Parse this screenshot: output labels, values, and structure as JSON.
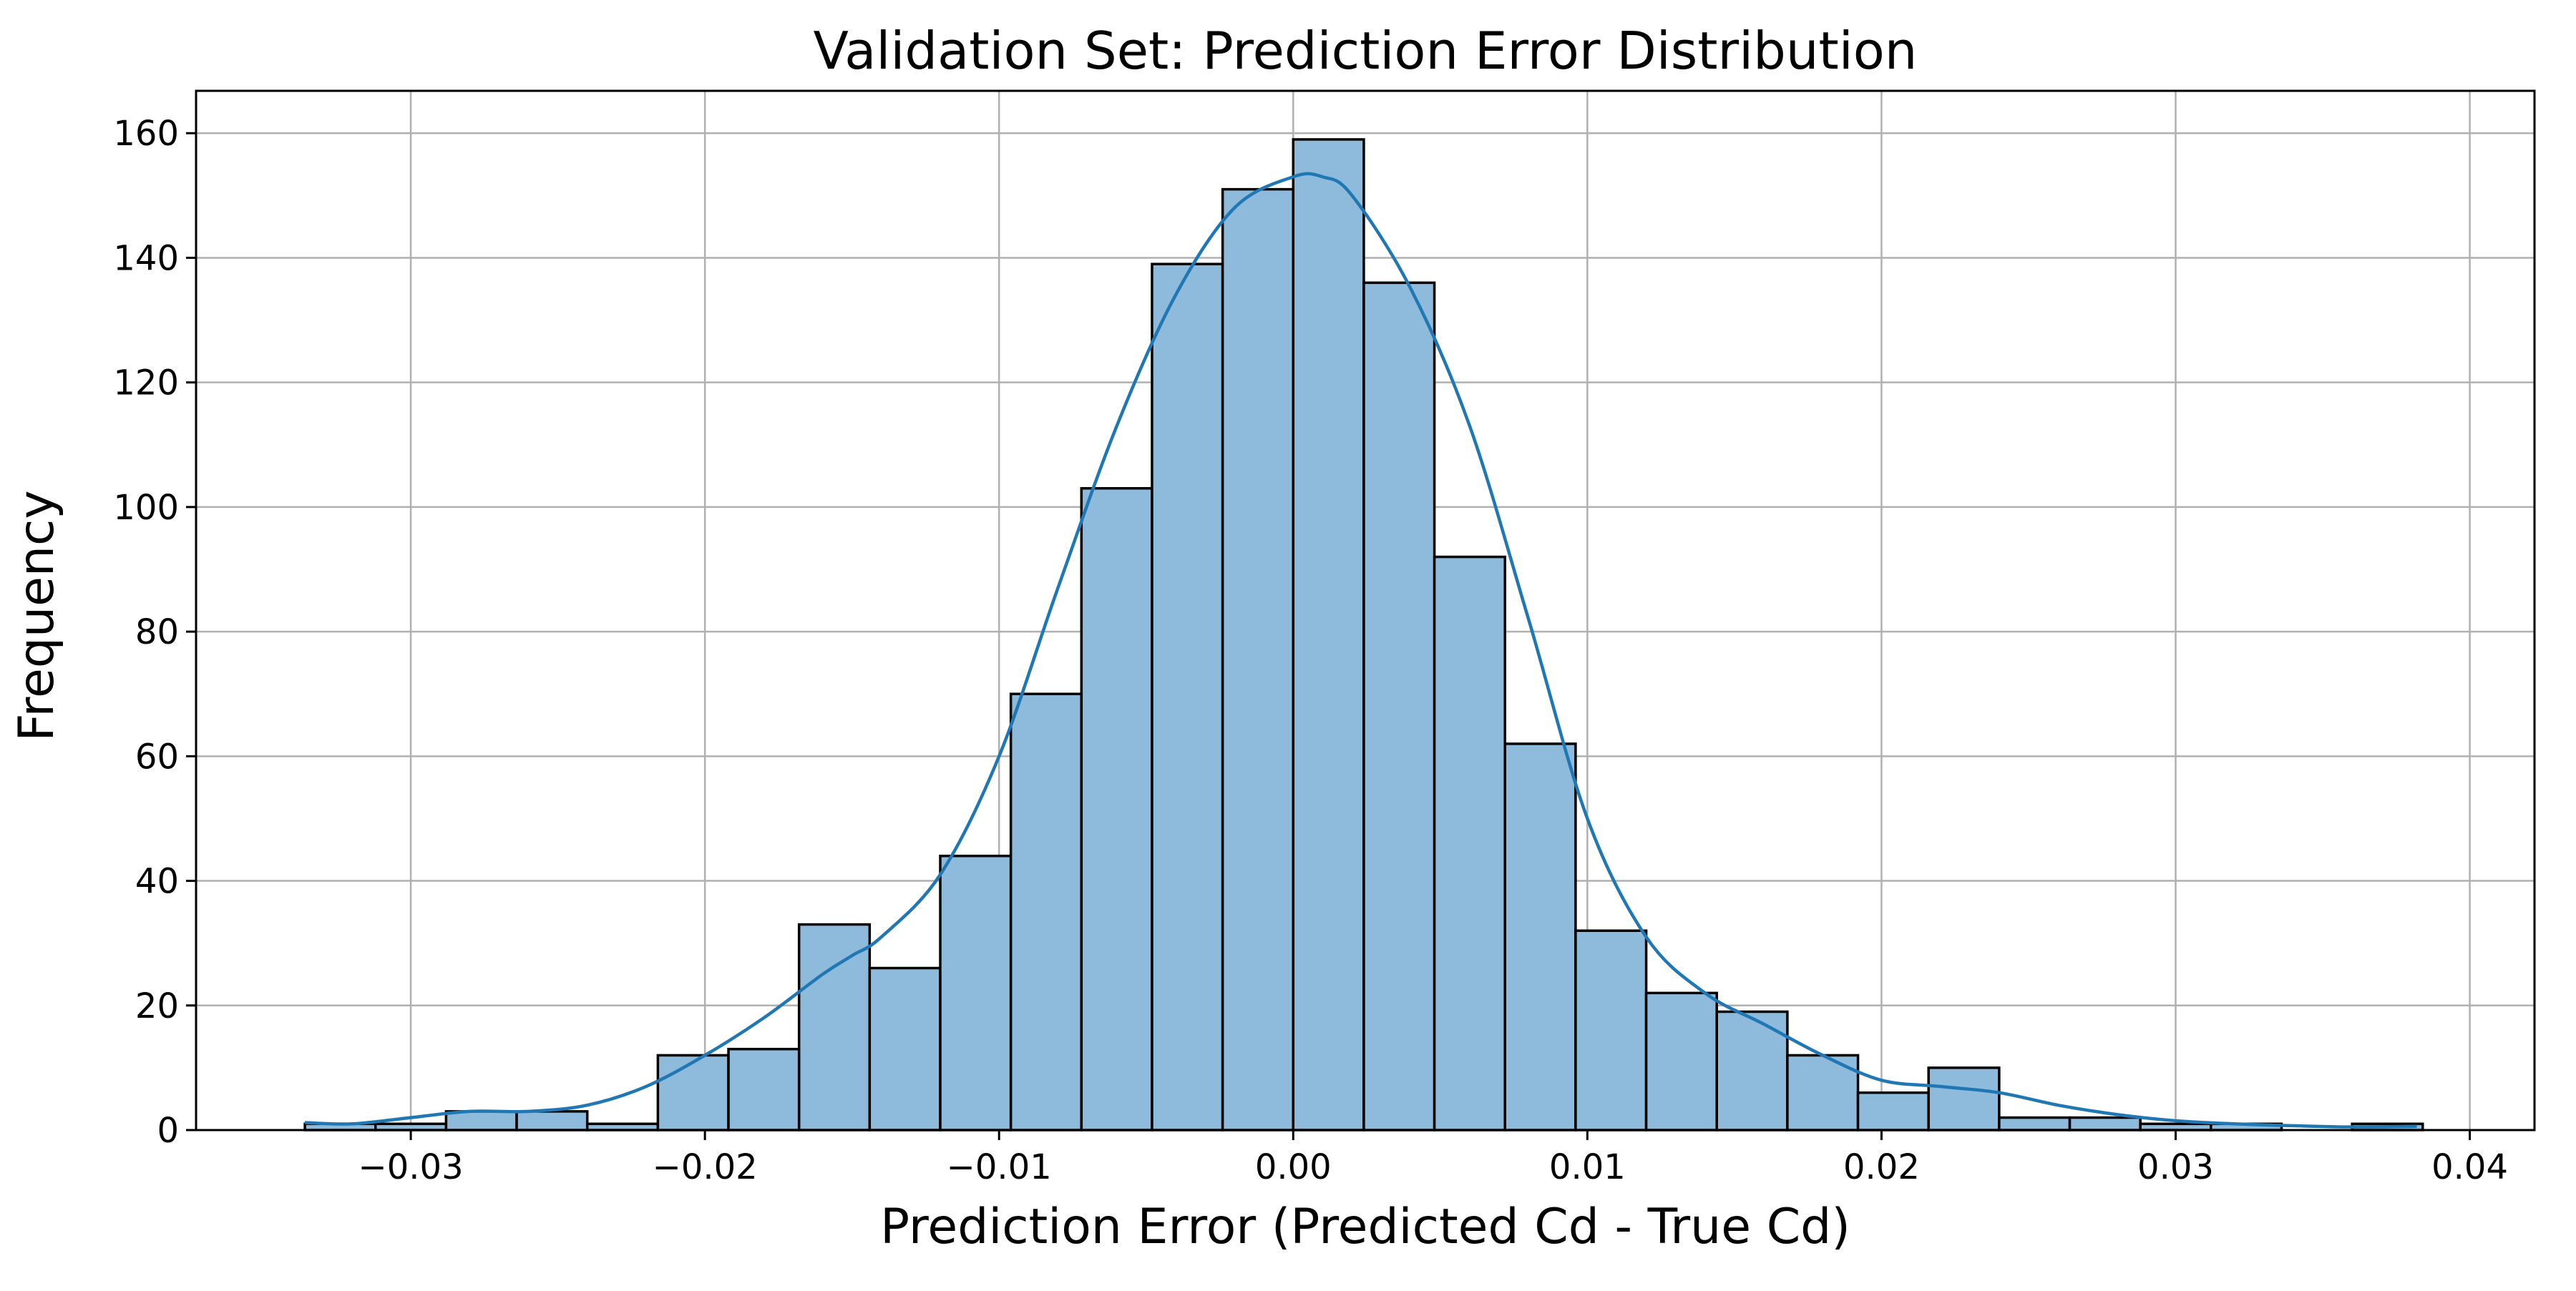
{
  "chart_data": {
    "type": "bar",
    "title": "Validation Set: Prediction Error Distribution",
    "xlabel": "Prediction Error (Predicted Cd - True Cd)",
    "ylabel": "Frequency",
    "xlim": [
      -0.0373,
      0.0422
    ],
    "ylim": [
      0,
      166.8
    ],
    "grid": true,
    "x_ticks": [
      -0.03,
      -0.02,
      -0.01,
      0.0,
      0.01,
      0.02,
      0.03,
      0.04
    ],
    "x_tick_labels": [
      "−0.03",
      "−0.02",
      "−0.01",
      "0.00",
      "0.01",
      "0.02",
      "0.03",
      "0.04"
    ],
    "y_ticks": [
      0,
      20,
      40,
      60,
      80,
      100,
      120,
      140,
      160
    ],
    "y_tick_labels": [
      "0",
      "20",
      "40",
      "60",
      "80",
      "100",
      "120",
      "140",
      "160"
    ],
    "bin_start": -0.0336,
    "bin_width": 0.0024,
    "values": [
      1,
      1,
      3,
      3,
      1,
      12,
      13,
      33,
      26,
      44,
      70,
      103,
      139,
      151,
      159,
      136,
      92,
      62,
      32,
      22,
      19,
      12,
      6,
      10,
      2,
      2,
      1,
      1,
      0,
      1
    ],
    "kde": {
      "x": [
        -0.0336,
        -0.032,
        -0.03,
        -0.028,
        -0.026,
        -0.024,
        -0.022,
        -0.02,
        -0.018,
        -0.016,
        -0.015,
        -0.014,
        -0.012,
        -0.01,
        -0.008,
        -0.006,
        -0.004,
        -0.002,
        0.0,
        0.001,
        0.002,
        0.004,
        0.006,
        0.008,
        0.01,
        0.012,
        0.014,
        0.016,
        0.018,
        0.02,
        0.022,
        0.024,
        0.026,
        0.028,
        0.03,
        0.032,
        0.034,
        0.036,
        0.0382
      ],
      "y": [
        1.2,
        1.0,
        2.0,
        3.0,
        3.0,
        4.0,
        7.0,
        12.0,
        18.0,
        25.0,
        28.0,
        31.0,
        41.0,
        60.0,
        87.0,
        113.0,
        134.0,
        148.0,
        153.0,
        153.0,
        150.0,
        135.0,
        113.0,
        82.0,
        50.0,
        31.0,
        22.0,
        17.0,
        12.0,
        8.0,
        7.0,
        6.0,
        4.0,
        2.5,
        1.5,
        1.0,
        0.7,
        0.5,
        0.6
      ]
    },
    "colors": {
      "bar_fill": "#8ebadb",
      "bar_edge": "#000000",
      "kde_line": "#1f77b4",
      "grid": "#b0b0b0"
    }
  }
}
